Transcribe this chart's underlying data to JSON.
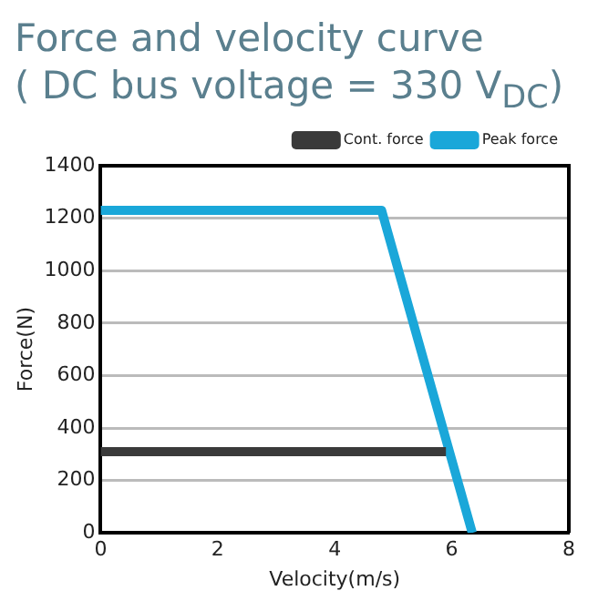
{
  "chart_data": {
    "type": "line",
    "title": "Force and velocity curve",
    "subtitle": "( DC bus voltage = 330 V$_{DC}$)",
    "xlabel": "Velocity(m/s)",
    "ylabel": "Force(N)",
    "series": [
      {
        "name": "Cont. force",
        "color": "#3a3a3a",
        "x": [
          0,
          5.9
        ],
        "values": [
          310,
          310
        ]
      },
      {
        "name": "Peak force",
        "color": "#1aa7d9",
        "x": [
          0,
          4.8,
          6.35
        ],
        "values": [
          1230,
          1230,
          0
        ]
      }
    ],
    "xlim": [
      0,
      8
    ],
    "xticks": [
      0,
      2,
      4,
      6,
      8
    ],
    "ylim": [
      0,
      1400
    ],
    "yticks": [
      0,
      200,
      400,
      600,
      800,
      1000,
      1200,
      1400
    ],
    "grid": "y",
    "legend": "top right",
    "marker": "none",
    "line_style": "solid"
  }
}
